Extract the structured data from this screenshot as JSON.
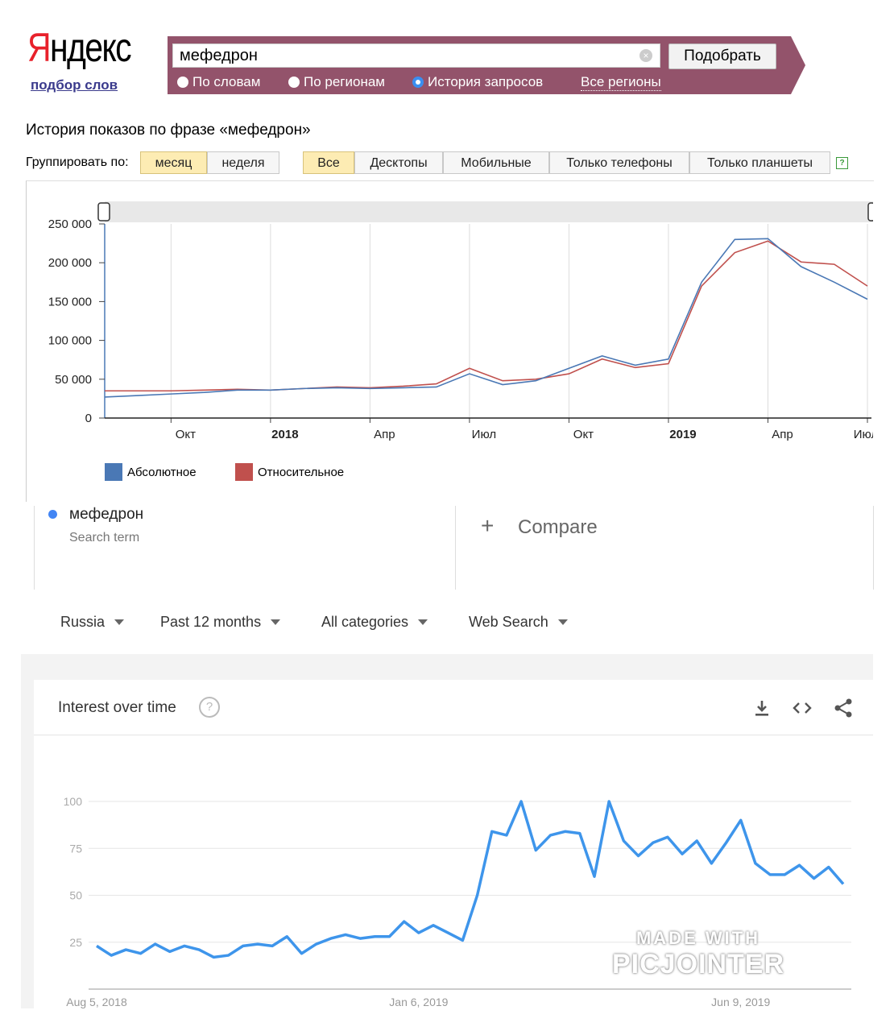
{
  "yandex": {
    "logo_first": "Я",
    "logo_rest": "ндекс",
    "subtitle": "подбор слов",
    "query": "мефедрон",
    "submit": "Подобрать",
    "radios": [
      "По словам",
      "По регионам",
      "История запросов"
    ],
    "selected_radio": "История запросов",
    "regions": "Все регионы",
    "history_title": "История показов по фразе «мефедрон»",
    "group_label": "Группировать по:",
    "group_buttons": [
      "месяц",
      "неделя"
    ],
    "device_buttons": [
      "Все",
      "Десктопы",
      "Мобильные",
      "Только телефоны",
      "Только планшеты"
    ],
    "help": "?",
    "legend": [
      "Абсолютное",
      "Относительное"
    ]
  },
  "google": {
    "term": "мефедрон",
    "term_sub": "Search term",
    "compare_plus": "+",
    "compare": "Compare",
    "filters": [
      "Russia",
      "Past 12 months",
      "All categories",
      "Web Search"
    ],
    "panel_title": "Interest over time",
    "help": "?",
    "icons": [
      "download-icon",
      "embed-icon",
      "share-icon"
    ]
  },
  "watermark": {
    "line1": "MADE WITH",
    "line2": "PICJOINTER"
  },
  "colors": {
    "absolute": "#4a78b5",
    "relative": "#c0504d",
    "trend": "#3e95eb",
    "yandex_bar": "#93536b"
  },
  "chart_data": [
    {
      "type": "line",
      "x": [
        "2017-08",
        "2017-09",
        "2017-10",
        "2017-11",
        "2017-12",
        "2018-01",
        "2018-02",
        "2018-03",
        "2018-04",
        "2018-05",
        "2018-06",
        "2018-07",
        "2018-08",
        "2018-09",
        "2018-10",
        "2018-11",
        "2018-12",
        "2019-01",
        "2019-02",
        "2019-03",
        "2019-04",
        "2019-05",
        "2019-06",
        "2019-07"
      ],
      "x_tick_labels": [
        "Окт",
        "2018",
        "Апр",
        "Июл",
        "Окт",
        "2019",
        "Апр",
        "Июл"
      ],
      "x_tick_at": [
        "2017-10",
        "2018-01",
        "2018-04",
        "2018-07",
        "2018-10",
        "2019-01",
        "2019-04",
        "2019-07"
      ],
      "series": [
        {
          "name": "Абсолютное",
          "values": [
            27000,
            29000,
            31000,
            33000,
            36000,
            36000,
            38000,
            39000,
            38000,
            39000,
            40000,
            57000,
            43000,
            48000,
            64000,
            80000,
            68000,
            76000,
            175000,
            230000,
            231000,
            195000,
            175000,
            153000
          ]
        },
        {
          "name": "Относительное",
          "values": [
            35000,
            35000,
            35000,
            36000,
            37000,
            36000,
            38000,
            40000,
            39000,
            41000,
            44000,
            64000,
            48000,
            50000,
            57000,
            76000,
            65000,
            70000,
            170000,
            213000,
            228000,
            201000,
            198000,
            170000
          ]
        }
      ],
      "ylim": [
        0,
        250000
      ],
      "yticks": [
        "0",
        "50 000",
        "100 000",
        "150 000",
        "200 000",
        "250 000"
      ],
      "ytick_values": [
        0,
        50000,
        100000,
        150000,
        200000,
        250000
      ]
    },
    {
      "type": "line",
      "title": "Interest over time",
      "x_tick_labels": [
        "Aug 5, 2018",
        "Jan 6, 2019",
        "Jun 9, 2019"
      ],
      "x_tick_at": [
        0,
        22,
        44
      ],
      "series": [
        {
          "name": "мефедрон",
          "values": [
            23,
            18,
            21,
            19,
            24,
            20,
            23,
            21,
            17,
            18,
            23,
            24,
            23,
            28,
            19,
            24,
            27,
            29,
            27,
            28,
            28,
            36,
            30,
            34,
            30,
            26,
            50,
            84,
            82,
            100,
            74,
            82,
            84,
            83,
            60,
            100,
            79,
            71,
            78,
            81,
            72,
            79,
            67,
            78,
            90,
            67,
            61,
            61,
            66,
            59,
            65,
            56
          ]
        }
      ],
      "ylim": [
        0,
        100
      ],
      "yticks": [
        "25",
        "50",
        "75",
        "100"
      ],
      "ytick_values": [
        25,
        50,
        75,
        100
      ]
    }
  ]
}
